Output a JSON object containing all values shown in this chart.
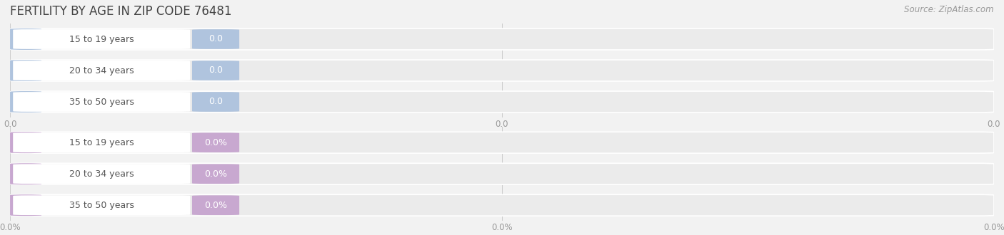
{
  "title": "FERTILITY BY AGE IN ZIP CODE 76481",
  "source_text": "Source: ZipAtlas.com",
  "top_section": {
    "categories": [
      "15 to 19 years",
      "20 to 34 years",
      "35 to 50 years"
    ],
    "values": [
      0.0,
      0.0,
      0.0
    ],
    "bar_color": "#b0c4de",
    "value_badge_color": "#a8bcd8",
    "value_label": "0.0",
    "x_tick_labels": [
      "0.0",
      "0.0",
      "0.0"
    ],
    "x_tick_positions": [
      0.0,
      0.5,
      1.0
    ]
  },
  "bottom_section": {
    "categories": [
      "15 to 19 years",
      "20 to 34 years",
      "35 to 50 years"
    ],
    "values": [
      0.0,
      0.0,
      0.0
    ],
    "bar_color": "#c8a8d0",
    "value_badge_color": "#c8a8d0",
    "value_label": "0.0%",
    "x_tick_labels": [
      "0.0%",
      "0.0%",
      "0.0%"
    ],
    "x_tick_positions": [
      0.0,
      0.5,
      1.0
    ]
  },
  "bg_color": "#f2f2f2",
  "bar_bg_color": "#ebebeb",
  "bar_bg_edge_color": "#ffffff",
  "label_pill_color": "#ffffff",
  "text_color": "#555555",
  "value_text_color": "#ffffff",
  "title_fontsize": 12,
  "label_fontsize": 9,
  "source_fontsize": 8.5,
  "tick_fontsize": 8.5,
  "tick_color": "#999999"
}
